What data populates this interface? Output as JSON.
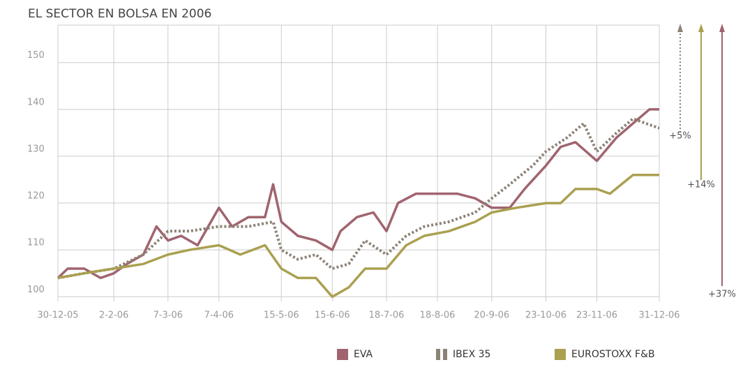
{
  "chart_data": {
    "type": "line",
    "title": "EL SECTOR EN BOLSA EN 2006",
    "xticks": [
      "30-12-05",
      "2-2-06",
      "7-3-06",
      "7-4-06",
      "15-5-06",
      "15-6-06",
      "18-7-06",
      "18-8-06",
      "20-9-06",
      "23-10-06",
      "23-11-06",
      "31-12-06"
    ],
    "ylim": [
      99,
      158
    ],
    "yticks": [
      100,
      110,
      120,
      130,
      140,
      150
    ],
    "grid": true,
    "legend": "bottom",
    "series": [
      {
        "name": "EVA",
        "color": "#a0646e",
        "style": "solid",
        "x": [
          "30-12-05",
          "5-1-06",
          "15-1-06",
          "25-1-06",
          "2-2-06",
          "10-2-06",
          "20-2-06",
          "28-2-06",
          "7-3-06",
          "15-3-06",
          "25-3-06",
          "7-4-06",
          "15-4-06",
          "25-4-06",
          "5-5-06",
          "10-5-06",
          "15-5-06",
          "25-5-06",
          "5-6-06",
          "15-6-06",
          "20-6-06",
          "30-6-06",
          "10-7-06",
          "18-7-06",
          "25-7-06",
          "5-8-06",
          "18-8-06",
          "30-8-06",
          "10-9-06",
          "20-9-06",
          "1-10-06",
          "10-10-06",
          "23-10-06",
          "1-11-06",
          "10-11-06",
          "23-11-06",
          "5-12-06",
          "15-12-06",
          "25-12-06",
          "31-12-06"
        ],
        "values": [
          104,
          106,
          106,
          104,
          105,
          107,
          109,
          115,
          112,
          113,
          111,
          119,
          115,
          117,
          117,
          124,
          116,
          113,
          112,
          110,
          114,
          117,
          118,
          114,
          120,
          122,
          122,
          122,
          121,
          119,
          119,
          123,
          128,
          132,
          133,
          129,
          134,
          137,
          140,
          140
        ]
      },
      {
        "name": "IBEX 35",
        "color": "#8c8276",
        "style": "dotted",
        "x": [
          "30-12-05",
          "15-1-06",
          "2-2-06",
          "20-2-06",
          "7-3-06",
          "20-3-06",
          "7-4-06",
          "25-4-06",
          "10-5-06",
          "15-5-06",
          "25-5-06",
          "5-6-06",
          "15-6-06",
          "25-6-06",
          "5-7-06",
          "18-7-06",
          "30-7-06",
          "10-8-06",
          "25-8-06",
          "10-9-06",
          "20-9-06",
          "1-10-06",
          "15-10-06",
          "23-10-06",
          "5-11-06",
          "15-11-06",
          "23-11-06",
          "5-12-06",
          "15-12-06",
          "31-12-06"
        ],
        "values": [
          104,
          105,
          106,
          109,
          114,
          114,
          115,
          115,
          116,
          110,
          108,
          109,
          106,
          107,
          112,
          109,
          113,
          115,
          116,
          118,
          121,
          124,
          128,
          131,
          134,
          137,
          131,
          135,
          138,
          136
        ]
      },
      {
        "name": "EUROSTOXX F&B",
        "color": "#aaa050",
        "style": "solid",
        "x": [
          "30-12-05",
          "15-1-06",
          "2-2-06",
          "20-2-06",
          "7-3-06",
          "20-3-06",
          "7-4-06",
          "20-4-06",
          "5-5-06",
          "15-5-06",
          "25-5-06",
          "5-6-06",
          "15-6-06",
          "25-6-06",
          "5-7-06",
          "18-7-06",
          "30-7-06",
          "10-8-06",
          "25-8-06",
          "10-9-06",
          "20-9-06",
          "5-10-06",
          "23-10-06",
          "1-11-06",
          "10-11-06",
          "23-11-06",
          "1-12-06",
          "15-12-06",
          "31-12-06"
        ],
        "values": [
          104,
          105,
          106,
          107,
          109,
          110,
          111,
          109,
          111,
          106,
          104,
          104,
          100,
          102,
          106,
          106,
          111,
          113,
          114,
          116,
          118,
          119,
          120,
          120,
          123,
          123,
          122,
          126,
          126
        ]
      }
    ],
    "annotations": [
      "+5%",
      "+14%",
      "+37%"
    ]
  }
}
